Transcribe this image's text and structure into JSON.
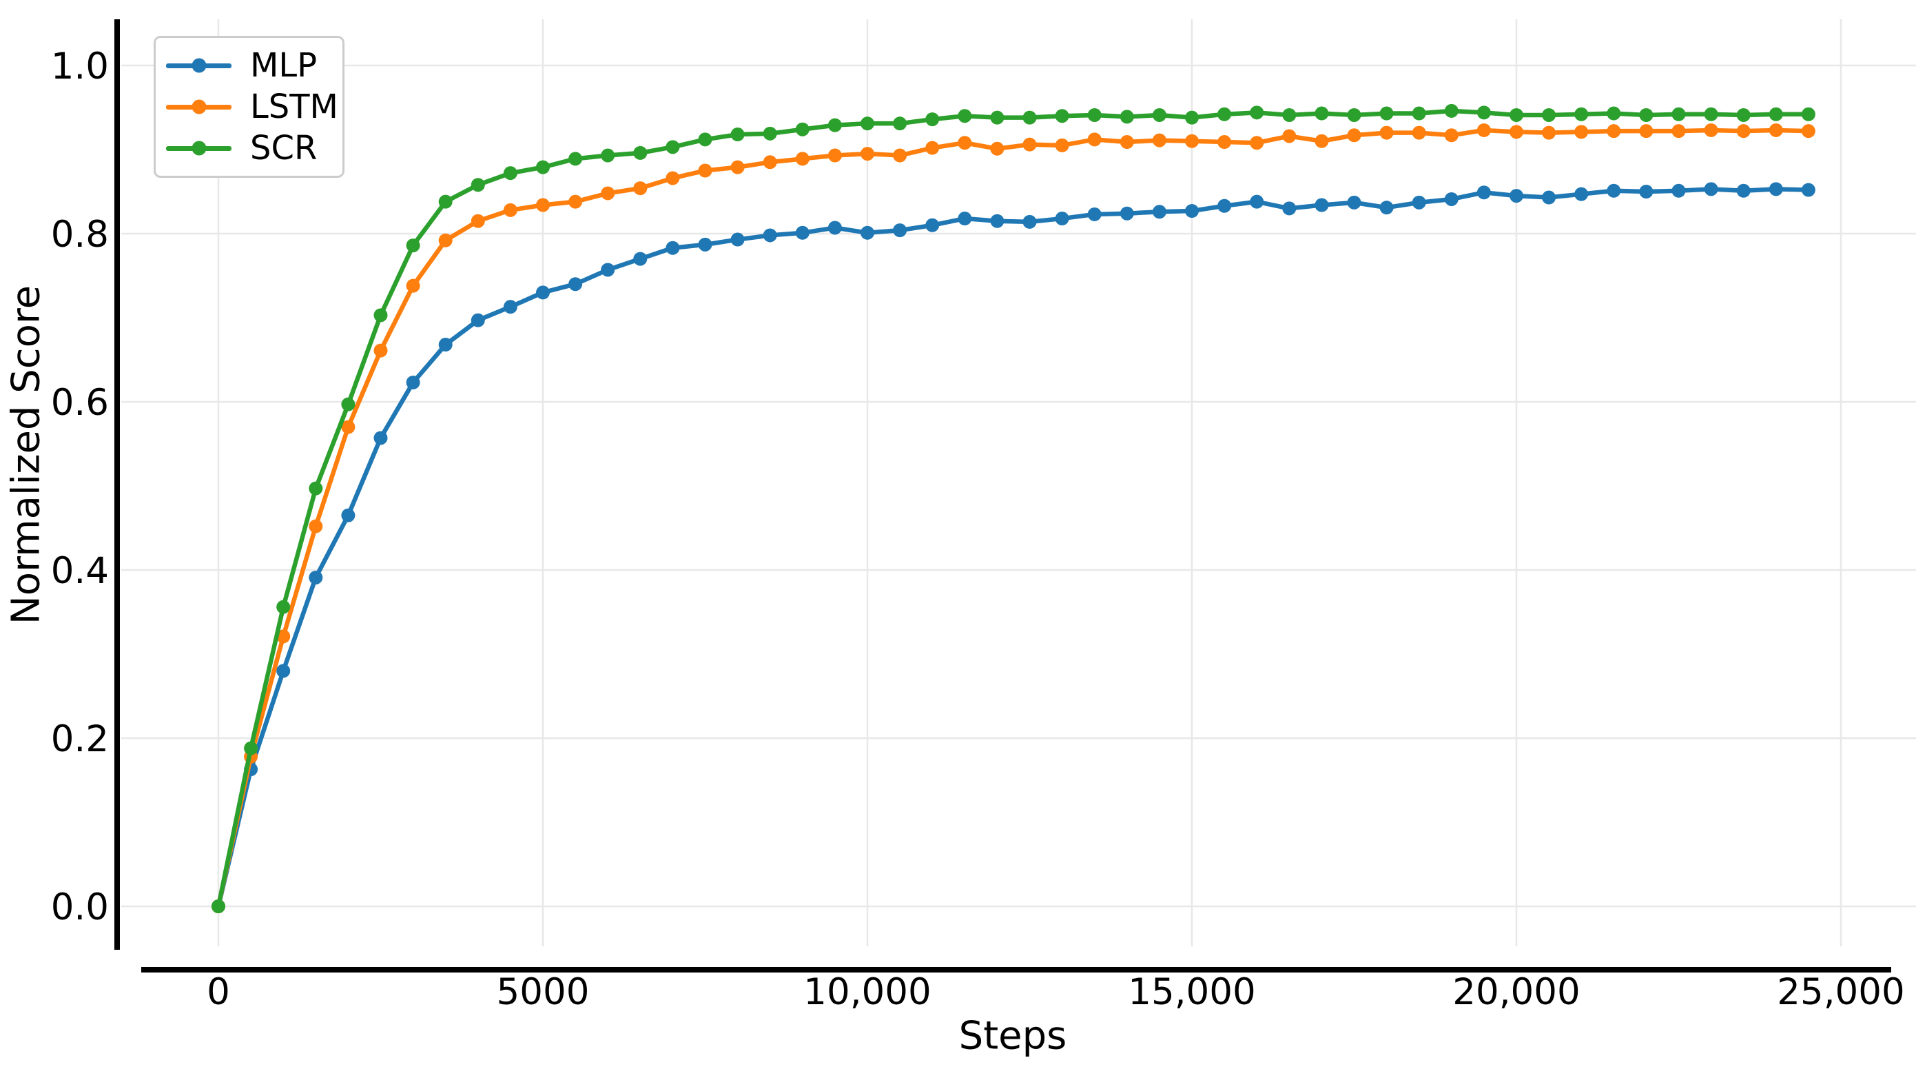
{
  "chart_data": {
    "type": "line",
    "title": "",
    "xlabel": "Steps",
    "ylabel": "Normalized Score",
    "xlim": [
      0,
      25000
    ],
    "ylim": [
      0.0,
      1.0
    ],
    "grid": true,
    "legend_position": "upper left",
    "x_ticks": [
      {
        "value": 0,
        "label": "0"
      },
      {
        "value": 5000,
        "label": "5000"
      },
      {
        "value": 10000,
        "label": "10,000"
      },
      {
        "value": 15000,
        "label": "15,000"
      },
      {
        "value": 20000,
        "label": "20,000"
      },
      {
        "value": 25000,
        "label": "25,000"
      }
    ],
    "y_ticks": [
      {
        "value": 0.0,
        "label": "0.0"
      },
      {
        "value": 0.2,
        "label": "0.2"
      },
      {
        "value": 0.4,
        "label": "0.4"
      },
      {
        "value": 0.6,
        "label": "0.6"
      },
      {
        "value": 0.8,
        "label": "0.8"
      },
      {
        "value": 1.0,
        "label": "1.0"
      }
    ],
    "x": [
      0,
      500,
      1000,
      1500,
      2000,
      2500,
      3000,
      3500,
      4000,
      4500,
      5000,
      5500,
      6000,
      6500,
      7000,
      7500,
      8000,
      8500,
      9000,
      9500,
      10000,
      10500,
      11000,
      11500,
      12000,
      12500,
      13000,
      13500,
      14000,
      14500,
      15000,
      15500,
      16000,
      16500,
      17000,
      17500,
      18000,
      18500,
      19000,
      19500,
      20000,
      20500,
      21000,
      21500,
      22000,
      22500,
      23000,
      23500,
      24000,
      24500
    ],
    "series": [
      {
        "name": "MLP",
        "color": "#1f77b4",
        "values": [
          0.0,
          0.163,
          0.28,
          0.391,
          0.465,
          0.557,
          0.623,
          0.668,
          0.697,
          0.713,
          0.73,
          0.74,
          0.757,
          0.77,
          0.783,
          0.787,
          0.793,
          0.798,
          0.801,
          0.807,
          0.801,
          0.804,
          0.81,
          0.818,
          0.815,
          0.814,
          0.818,
          0.823,
          0.824,
          0.826,
          0.827,
          0.833,
          0.838,
          0.83,
          0.834,
          0.837,
          0.831,
          0.837,
          0.841,
          0.849,
          0.845,
          0.843,
          0.847,
          0.851,
          0.85,
          0.851,
          0.853,
          0.851,
          0.853,
          0.852
        ]
      },
      {
        "name": "LSTM",
        "color": "#ff7f0e",
        "values": [
          0.0,
          0.178,
          0.321,
          0.452,
          0.57,
          0.661,
          0.738,
          0.792,
          0.815,
          0.828,
          0.834,
          0.838,
          0.848,
          0.854,
          0.866,
          0.875,
          0.879,
          0.885,
          0.889,
          0.893,
          0.895,
          0.893,
          0.902,
          0.908,
          0.901,
          0.906,
          0.905,
          0.912,
          0.909,
          0.911,
          0.91,
          0.909,
          0.908,
          0.916,
          0.91,
          0.917,
          0.92,
          0.92,
          0.917,
          0.923,
          0.921,
          0.92,
          0.921,
          0.922,
          0.922,
          0.922,
          0.923,
          0.922,
          0.923,
          0.922
        ]
      },
      {
        "name": "SCR",
        "color": "#2ca02c",
        "values": [
          0.0,
          0.188,
          0.356,
          0.497,
          0.597,
          0.703,
          0.786,
          0.838,
          0.858,
          0.872,
          0.879,
          0.889,
          0.893,
          0.896,
          0.903,
          0.912,
          0.918,
          0.919,
          0.924,
          0.929,
          0.931,
          0.931,
          0.936,
          0.94,
          0.938,
          0.938,
          0.94,
          0.941,
          0.939,
          0.941,
          0.938,
          0.942,
          0.944,
          0.941,
          0.943,
          0.941,
          0.943,
          0.943,
          0.946,
          0.944,
          0.941,
          0.941,
          0.942,
          0.943,
          0.941,
          0.942,
          0.942,
          0.941,
          0.942,
          0.942
        ]
      }
    ],
    "style": {
      "grid_color": "#e8e8e8",
      "spine_color": "#000000",
      "background": "#ffffff"
    }
  }
}
